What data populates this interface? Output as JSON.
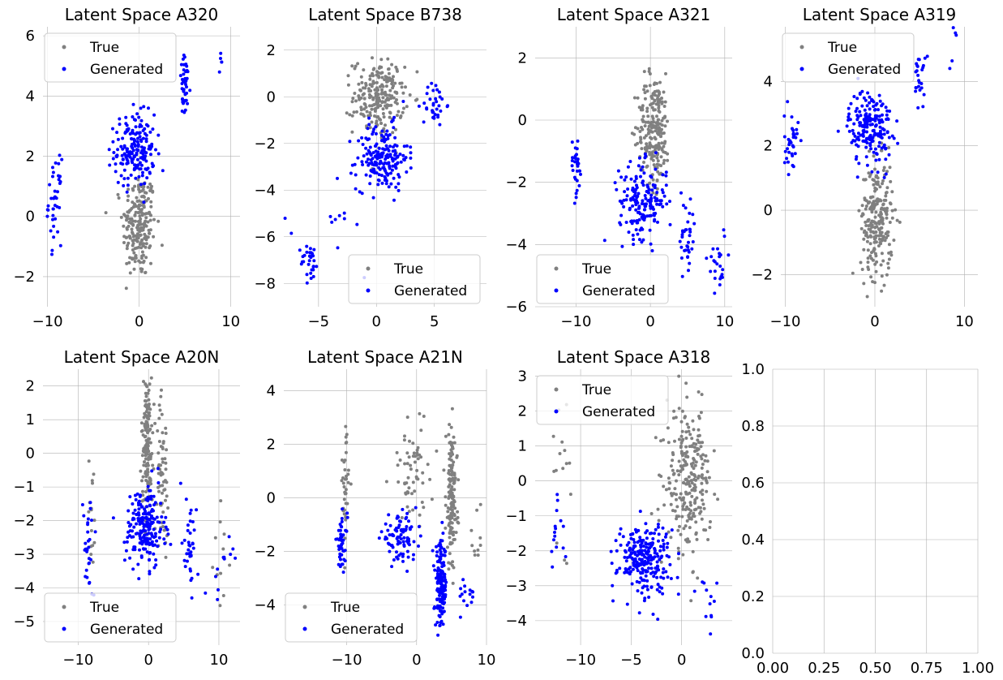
{
  "figure": {
    "colors": {
      "true_series": "#808080",
      "generated_series": "#0000ff",
      "grid": "#b0b0b0",
      "text": "#000000"
    }
  },
  "chart_data": [
    {
      "type": "scatter",
      "title": "Latent Space A320",
      "xlim": [
        -10.5,
        11
      ],
      "ylim": [
        -3,
        6.3
      ],
      "xticks": [
        -10,
        0,
        10
      ],
      "yticks": [
        -2,
        0,
        2,
        4,
        6
      ],
      "grid": true,
      "legend": "top-left",
      "series": [
        {
          "name": "True",
          "color": "#808080",
          "clusters": [
            {
              "cx": 0,
              "cy": -0.3,
              "sx": 0.9,
              "sy": 0.9,
              "n": 220
            }
          ]
        },
        {
          "name": "Generated",
          "color": "#0000ff",
          "clusters": [
            {
              "cx": -0.5,
              "cy": 2.2,
              "sx": 1.1,
              "sy": 0.6,
              "n": 190
            },
            {
              "cx": -9.2,
              "cy": 0.5,
              "sx": 0.35,
              "sy": 0.7,
              "n": 40
            },
            {
              "cx": 5.0,
              "cy": 4.3,
              "sx": 0.3,
              "sy": 0.5,
              "n": 45
            },
            {
              "cx": 9.2,
              "cy": 5.0,
              "sx": 0.3,
              "sy": 0.3,
              "n": 5
            }
          ]
        }
      ]
    },
    {
      "type": "scatter",
      "title": "Latent Space B738",
      "xlim": [
        -8,
        9.5
      ],
      "ylim": [
        -9,
        3
      ],
      "xticks": [
        -5,
        0,
        5
      ],
      "yticks": [
        -8,
        -6,
        -4,
        -2,
        0,
        2
      ],
      "grid": true,
      "legend": "bottom-right",
      "series": [
        {
          "name": "True",
          "color": "#808080",
          "clusters": [
            {
              "cx": 0.2,
              "cy": 0.0,
              "sx": 1.1,
              "sy": 0.8,
              "n": 220
            }
          ]
        },
        {
          "name": "Generated",
          "color": "#0000ff",
          "clusters": [
            {
              "cx": 0.5,
              "cy": -2.6,
              "sx": 1.1,
              "sy": 0.7,
              "n": 190
            },
            {
              "cx": -5.7,
              "cy": -7.1,
              "sx": 0.4,
              "sy": 0.4,
              "n": 30
            },
            {
              "cx": 5.0,
              "cy": -0.3,
              "sx": 0.5,
              "sy": 0.5,
              "n": 35
            },
            {
              "cx": -3.2,
              "cy": -5.5,
              "sx": 1.5,
              "sy": 1.2,
              "n": 12
            }
          ]
        }
      ]
    },
    {
      "type": "scatter",
      "title": "Latent Space A321",
      "xlim": [
        -15.5,
        11
      ],
      "ylim": [
        -6,
        3
      ],
      "xticks": [
        -10,
        0,
        10
      ],
      "yticks": [
        -6,
        -4,
        -2,
        0,
        2
      ],
      "grid": true,
      "legend": "bottom-left",
      "series": [
        {
          "name": "True",
          "color": "#808080",
          "clusters": [
            {
              "cx": 0.5,
              "cy": -0.3,
              "sx": 1.1,
              "sy": 0.9,
              "n": 230
            }
          ]
        },
        {
          "name": "Generated",
          "color": "#0000ff",
          "clusters": [
            {
              "cx": -1.0,
              "cy": -2.6,
              "sx": 1.6,
              "sy": 0.6,
              "n": 170
            },
            {
              "cx": -10.0,
              "cy": -1.5,
              "sx": 0.4,
              "sy": 0.5,
              "n": 30
            },
            {
              "cx": 5.0,
              "cy": -3.8,
              "sx": 0.5,
              "sy": 0.7,
              "n": 35
            },
            {
              "cx": 9.0,
              "cy": -4.5,
              "sx": 0.6,
              "sy": 0.6,
              "n": 25
            }
          ]
        }
      ]
    },
    {
      "type": "scatter",
      "title": "Latent Space A319",
      "xlim": [
        -10.5,
        11.5
      ],
      "ylim": [
        -3,
        5.7
      ],
      "xticks": [
        -10,
        0,
        10
      ],
      "yticks": [
        -2,
        0,
        2,
        4
      ],
      "grid": true,
      "legend": "top-left",
      "series": [
        {
          "name": "True",
          "color": "#808080",
          "clusters": [
            {
              "cx": 0.2,
              "cy": -0.3,
              "sx": 0.9,
              "sy": 0.9,
              "n": 230
            }
          ]
        },
        {
          "name": "Generated",
          "color": "#0000ff",
          "clusters": [
            {
              "cx": -0.5,
              "cy": 2.6,
              "sx": 1.2,
              "sy": 0.6,
              "n": 190
            },
            {
              "cx": -9.3,
              "cy": 2.0,
              "sx": 0.4,
              "sy": 0.5,
              "n": 35
            },
            {
              "cx": 5.0,
              "cy": 4.2,
              "sx": 0.3,
              "sy": 0.5,
              "n": 25
            },
            {
              "cx": 9.0,
              "cy": 5.0,
              "sx": 0.4,
              "sy": 0.4,
              "n": 5
            }
          ]
        }
      ]
    },
    {
      "type": "scatter",
      "title": "Latent Space A20N",
      "xlim": [
        -15,
        13
      ],
      "ylim": [
        -5.7,
        2.5
      ],
      "xticks": [
        -10,
        0,
        10
      ],
      "yticks": [
        -5,
        -4,
        -3,
        -2,
        -1,
        0,
        1,
        2
      ],
      "grid": true,
      "legend": "bottom-left",
      "series": [
        {
          "name": "True",
          "color": "#808080",
          "clusters": [
            {
              "cx": -0.2,
              "cy": 0.3,
              "sx": 0.4,
              "sy": 1.0,
              "n": 150
            },
            {
              "cx": 2.0,
              "cy": -0.5,
              "sx": 0.4,
              "sy": 1.0,
              "n": 60
            },
            {
              "cx": -8.0,
              "cy": -2.0,
              "sx": 0.3,
              "sy": 1.2,
              "n": 15
            },
            {
              "cx": 10.5,
              "cy": -3.0,
              "sx": 0.6,
              "sy": 1.0,
              "n": 12
            }
          ]
        },
        {
          "name": "Generated",
          "color": "#0000ff",
          "clusters": [
            {
              "cx": -0.5,
              "cy": -2.2,
              "sx": 1.4,
              "sy": 0.6,
              "n": 200
            },
            {
              "cx": -8.5,
              "cy": -2.8,
              "sx": 0.4,
              "sy": 0.8,
              "n": 30
            },
            {
              "cx": 6.0,
              "cy": -2.8,
              "sx": 0.4,
              "sy": 0.6,
              "n": 35
            },
            {
              "cx": 10.5,
              "cy": -3.3,
              "sx": 0.8,
              "sy": 0.5,
              "n": 12
            }
          ]
        }
      ]
    },
    {
      "type": "scatter",
      "title": "Latent Space A21N",
      "xlim": [
        -19,
        10
      ],
      "ylim": [
        -5.5,
        4.8
      ],
      "xticks": [
        -10,
        0,
        10
      ],
      "yticks": [
        -4,
        -2,
        0,
        2,
        4
      ],
      "grid": true,
      "legend": "bottom-left",
      "series": [
        {
          "name": "True",
          "color": "#808080",
          "clusters": [
            {
              "cx": -10.3,
              "cy": 0.3,
              "sx": 0.3,
              "sy": 1.2,
              "n": 40
            },
            {
              "cx": -0.5,
              "cy": 1.0,
              "sx": 1.5,
              "sy": 1.0,
              "n": 60
            },
            {
              "cx": 5.0,
              "cy": 0.0,
              "sx": 0.4,
              "sy": 1.3,
              "n": 150
            },
            {
              "cx": 8.5,
              "cy": -1.5,
              "sx": 0.8,
              "sy": 0.6,
              "n": 10
            }
          ]
        },
        {
          "name": "Generated",
          "color": "#0000ff",
          "clusters": [
            {
              "cx": -10.7,
              "cy": -1.7,
              "sx": 0.4,
              "sy": 0.5,
              "n": 45
            },
            {
              "cx": -2.5,
              "cy": -1.5,
              "sx": 1.3,
              "sy": 0.4,
              "n": 90
            },
            {
              "cx": 3.5,
              "cy": -3.3,
              "sx": 0.4,
              "sy": 0.8,
              "n": 150
            },
            {
              "cx": 7.0,
              "cy": -3.6,
              "sx": 0.7,
              "sy": 0.4,
              "n": 15
            }
          ]
        }
      ]
    },
    {
      "type": "scatter",
      "title": "Latent Space A318",
      "xlim": [
        -14.5,
        5
      ],
      "ylim": [
        -4.7,
        3.2
      ],
      "xticks": [
        -10,
        -5,
        0
      ],
      "yticks": [
        -4,
        -3,
        -2,
        -1,
        0,
        1,
        2,
        3
      ],
      "grid": true,
      "legend": "top-left",
      "series": [
        {
          "name": "True",
          "color": "#808080",
          "clusters": [
            {
              "cx": 0.7,
              "cy": 0.0,
              "sx": 1.1,
              "sy": 1.0,
              "n": 260
            },
            {
              "cx": -12.0,
              "cy": 0.5,
              "sx": 0.6,
              "sy": 1.2,
              "n": 15
            }
          ]
        },
        {
          "name": "Generated",
          "color": "#0000ff",
          "clusters": [
            {
              "cx": -3.7,
              "cy": -2.2,
              "sx": 1.3,
              "sy": 0.5,
              "n": 240
            },
            {
              "cx": -12.3,
              "cy": -1.6,
              "sx": 0.4,
              "sy": 0.5,
              "n": 15
            },
            {
              "cx": 2.5,
              "cy": -3.3,
              "sx": 0.5,
              "sy": 0.6,
              "n": 12
            }
          ]
        }
      ]
    },
    {
      "type": "scatter",
      "title": "",
      "xlim": [
        0,
        1
      ],
      "ylim": [
        0,
        1
      ],
      "xticks": [
        0.0,
        0.25,
        0.5,
        0.75,
        1.0
      ],
      "yticks": [
        0.0,
        0.2,
        0.4,
        0.6,
        0.8,
        1.0
      ],
      "xtick_labels": [
        "0.00",
        "0.25",
        "0.50",
        "0.75",
        "1.00"
      ],
      "ytick_labels": [
        "0.0",
        "0.2",
        "0.4",
        "0.6",
        "0.8",
        "1.0"
      ],
      "grid": true,
      "legend": "none",
      "series": []
    }
  ]
}
